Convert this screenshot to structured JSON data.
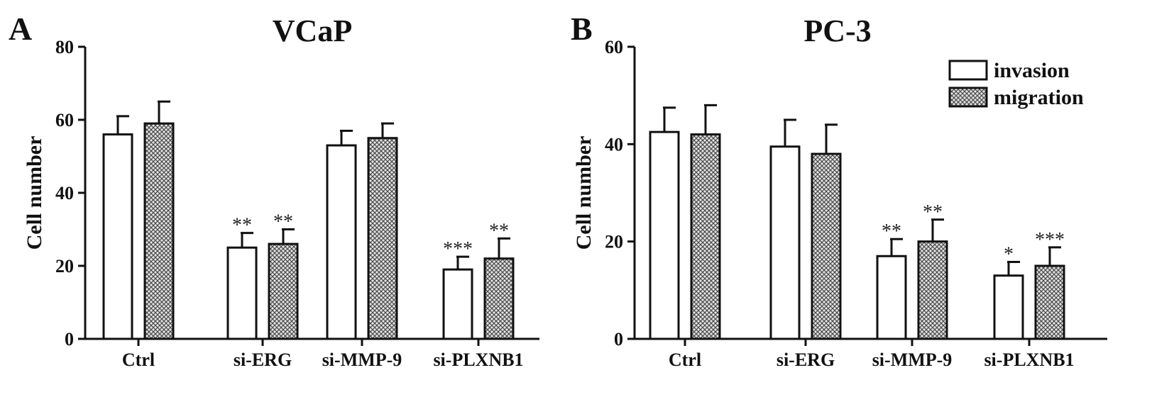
{
  "figure": {
    "panels": [
      {
        "letter": "A"
      },
      {
        "letter": "B"
      }
    ]
  },
  "chart_data": [
    {
      "type": "bar",
      "title": "VCaP",
      "xlabel": "",
      "ylabel": "Cell number",
      "ylim": [
        0,
        80
      ],
      "yticks": [
        0,
        20,
        40,
        60,
        80
      ],
      "categories": [
        "Ctrl",
        "si-ERG",
        "si-MMP-9",
        "si-PLXNB1"
      ],
      "series": [
        {
          "name": "invasion",
          "pattern": "white",
          "values": [
            56,
            25,
            53,
            19
          ],
          "errors": [
            5,
            4,
            4,
            3.5
          ],
          "significance": [
            "",
            "**",
            "",
            "***"
          ]
        },
        {
          "name": "migration",
          "pattern": "crosshatch",
          "values": [
            59,
            26,
            55,
            22
          ],
          "errors": [
            6,
            4,
            4,
            5.5
          ],
          "significance": [
            "",
            "**",
            "",
            "**"
          ]
        }
      ],
      "legend": false,
      "grid": false
    },
    {
      "type": "bar",
      "title": "PC-3",
      "xlabel": "",
      "ylabel": "Cell number",
      "ylim": [
        0,
        60
      ],
      "yticks": [
        0,
        20,
        40,
        60
      ],
      "categories": [
        "Ctrl",
        "si-ERG",
        "si-MMP-9",
        "si-PLXNB1"
      ],
      "series": [
        {
          "name": "invasion",
          "pattern": "white",
          "values": [
            42.5,
            39.5,
            17,
            13
          ],
          "errors": [
            5,
            5.5,
            3.5,
            2.8
          ],
          "significance": [
            "",
            "",
            "**",
            "*"
          ]
        },
        {
          "name": "migration",
          "pattern": "crosshatch",
          "values": [
            42,
            38,
            20,
            15
          ],
          "errors": [
            6,
            6,
            4.5,
            3.8
          ],
          "significance": [
            "",
            "",
            "**",
            "***"
          ]
        }
      ],
      "legend": "top-right",
      "grid": false
    }
  ]
}
